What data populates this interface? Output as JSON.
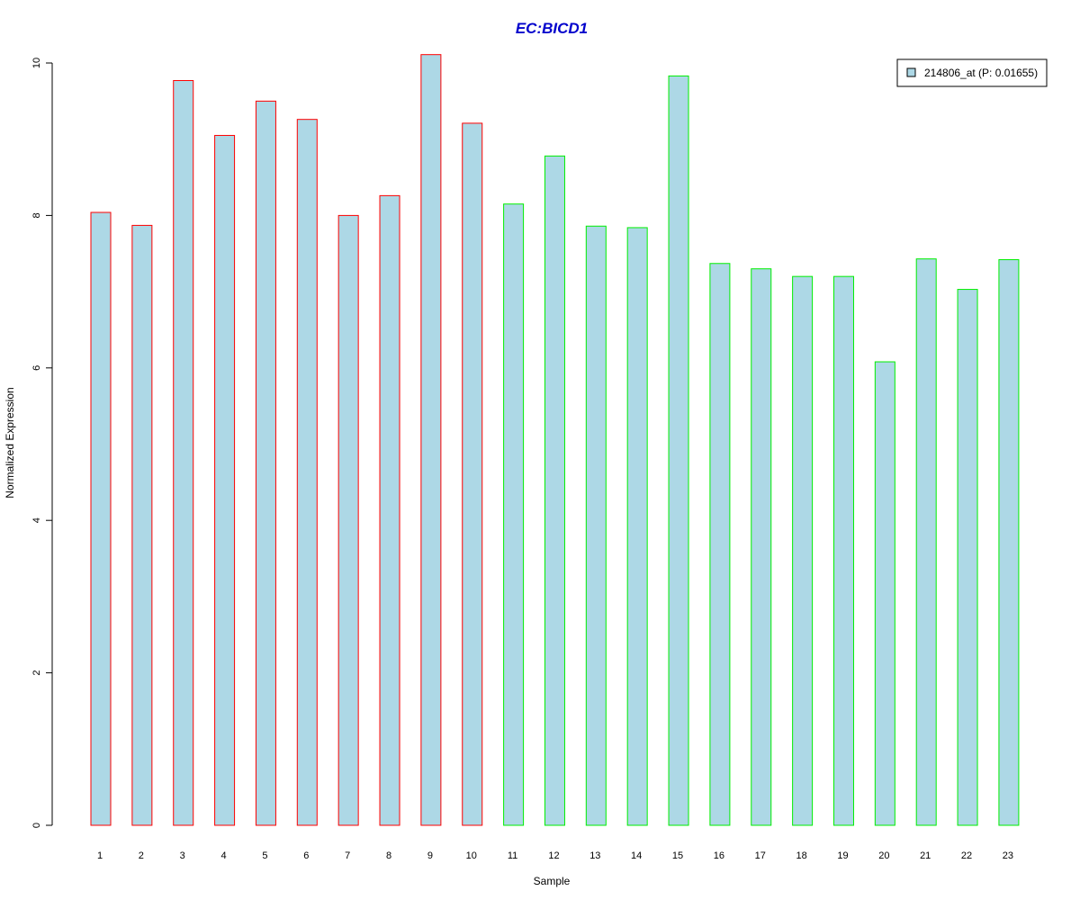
{
  "chart_data": {
    "type": "bar",
    "title": "EC:BICD1",
    "xlabel": "Sample",
    "ylabel": "Normalized Expression",
    "ylim": [
      0,
      10
    ],
    "yticks": [
      0,
      2,
      4,
      6,
      8,
      10
    ],
    "categories": [
      "1",
      "2",
      "3",
      "4",
      "5",
      "6",
      "7",
      "8",
      "9",
      "10",
      "11",
      "12",
      "13",
      "14",
      "15",
      "16",
      "17",
      "18",
      "19",
      "20",
      "21",
      "22",
      "23"
    ],
    "series": [
      {
        "name": "214806_at (P: 0.01655)",
        "values": [
          8.04,
          7.87,
          9.77,
          9.05,
          9.5,
          9.26,
          8.0,
          8.26,
          10.11,
          9.21,
          8.15,
          8.78,
          7.86,
          7.84,
          9.83,
          7.37,
          7.3,
          7.2,
          7.2,
          6.08,
          7.43,
          7.03,
          7.42
        ]
      }
    ],
    "group_border_colors": [
      "#ff0000",
      "#ff0000",
      "#ff0000",
      "#ff0000",
      "#ff0000",
      "#ff0000",
      "#ff0000",
      "#ff0000",
      "#ff0000",
      "#ff0000",
      "#00ee00",
      "#00ee00",
      "#00ee00",
      "#00ee00",
      "#00ee00",
      "#00ee00",
      "#00ee00",
      "#00ee00",
      "#00ee00",
      "#00ee00",
      "#00ee00",
      "#00ee00",
      "#00ee00"
    ],
    "bar_fill_color": "#add8e6",
    "title_color": "#0000cc",
    "legend_position": "top-right",
    "grid": false
  }
}
